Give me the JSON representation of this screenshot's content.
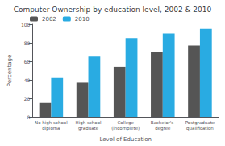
{
  "chart_data": {
    "type": "bar",
    "title": "Computer Ownership by education level, 2002 & 2010",
    "xlabel": "Level of Education",
    "ylabel": "Percentage",
    "categories": [
      "No high school\ndiploma",
      "High school\ngraduate",
      "College\n(incomplete)",
      "Bachelor's degree",
      "Postgraduate\nqualification"
    ],
    "series": [
      {
        "name": "2002",
        "color": "#555555",
        "values": [
          15,
          37,
          54,
          70,
          77
        ]
      },
      {
        "name": "2010",
        "color": "#29abe2",
        "values": [
          42,
          65,
          85,
          90,
          95
        ]
      }
    ],
    "ylim": [
      0,
      100
    ],
    "yticks": [
      0,
      20,
      40,
      60,
      80,
      100
    ],
    "grid": false,
    "legend": "upper left"
  }
}
